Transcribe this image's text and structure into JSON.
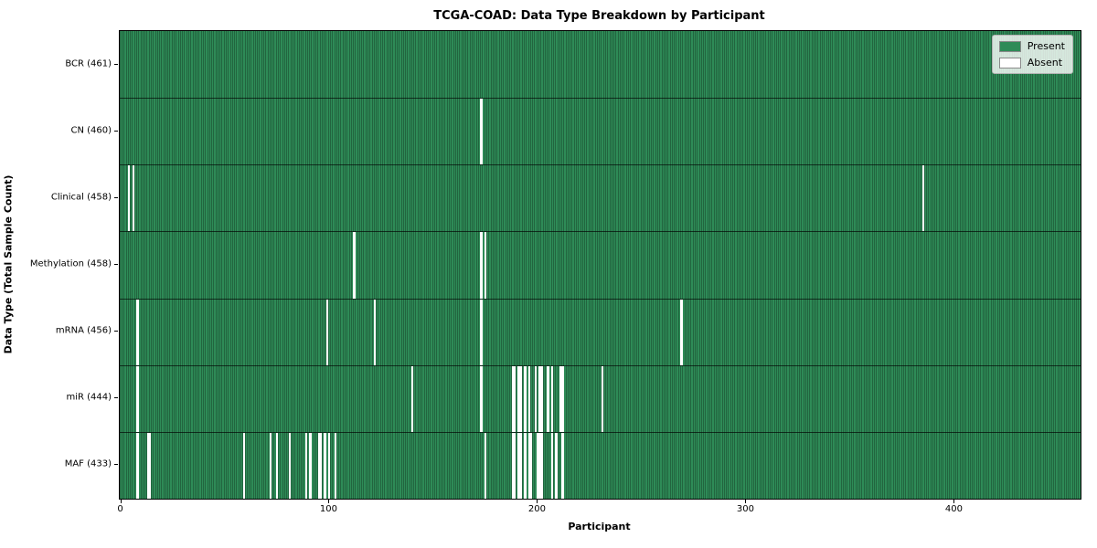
{
  "chart_data": {
    "type": "heatmap",
    "title": "TCGA-COAD: Data Type Breakdown by Participant",
    "xlabel": "Participant",
    "ylabel": "Data Type (Total Sample Count)",
    "n_participants": 461,
    "x_ticks": [
      0,
      100,
      200,
      300,
      400
    ],
    "x_range": [
      0,
      461
    ],
    "grid": false,
    "legend_position": "upper right",
    "legend": [
      {
        "label": "Present",
        "color": "#2e8b57"
      },
      {
        "label": "Absent",
        "color": "#ffffff"
      }
    ],
    "colors": {
      "present": "#2e8b57",
      "absent": "#ffffff",
      "cell_edge": "rgba(0,0,0,0.55)",
      "row_separator": "rgba(0,0,0,0.65)"
    },
    "rows": [
      {
        "label": "BCR (461)",
        "name": "BCR",
        "total": 461,
        "absent": []
      },
      {
        "label": "CN (460)",
        "name": "CN",
        "total": 460,
        "absent": [
          173
        ]
      },
      {
        "label": "Clinical (458)",
        "name": "Clinical",
        "total": 458,
        "absent": [
          4,
          6,
          385
        ]
      },
      {
        "label": "Methylation (458)",
        "name": "Methylation",
        "total": 458,
        "absent": [
          112,
          173,
          175
        ]
      },
      {
        "label": "mRNA (456)",
        "name": "mRNA",
        "total": 456,
        "absent": [
          8,
          99,
          122,
          173,
          269
        ]
      },
      {
        "label": "miR (444)",
        "name": "miR",
        "total": 444,
        "absent": [
          8,
          140,
          173,
          188,
          189,
          191,
          192,
          194,
          196,
          199,
          201,
          202,
          205,
          207,
          211,
          212,
          231
        ]
      },
      {
        "label": "MAF (433)",
        "name": "MAF",
        "total": 433,
        "absent": [
          8,
          13,
          14,
          59,
          72,
          75,
          81,
          89,
          91,
          95,
          96,
          98,
          100,
          103,
          175,
          188,
          189,
          191,
          192,
          194,
          196,
          197,
          200,
          201,
          202,
          207,
          209,
          212
        ]
      }
    ]
  }
}
